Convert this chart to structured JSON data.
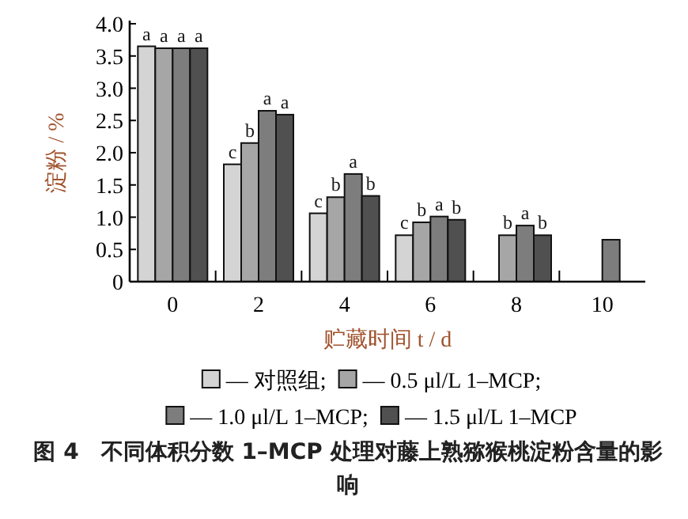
{
  "chart_data": {
    "type": "bar",
    "categories": [
      "0",
      "2",
      "4",
      "6",
      "8",
      "10"
    ],
    "xlabel": "贮藏时间 t / d",
    "ylabel": "淀粉 / %",
    "ylim": [
      0,
      4.0
    ],
    "yticks": [
      {
        "value": 0,
        "label": "0"
      },
      {
        "value": 0.5,
        "label": "0.5"
      },
      {
        "value": 1.0,
        "label": "1.0"
      },
      {
        "value": 1.5,
        "label": "1.5"
      },
      {
        "value": 2.0,
        "label": "2.0"
      },
      {
        "value": 2.5,
        "label": "2.5"
      },
      {
        "value": 3.0,
        "label": "3.0"
      },
      {
        "value": 3.5,
        "label": "3.5"
      },
      {
        "value": 4.0,
        "label": "4.0"
      }
    ],
    "series": [
      {
        "name": "— 对照组;",
        "color": "#d4d4d4",
        "values": [
          3.65,
          1.82,
          1.06,
          0.72,
          null,
          null
        ],
        "value_labels": [
          "a",
          "c",
          "c",
          "c",
          null,
          null
        ]
      },
      {
        "name": "— 0.5 μl/L 1–MCP;",
        "color": "#a6a6a6",
        "values": [
          3.62,
          2.15,
          1.31,
          0.92,
          0.72,
          null
        ],
        "value_labels": [
          "a",
          "b",
          "b",
          "b",
          "b",
          null
        ]
      },
      {
        "name": "— 1.0 μl/L 1–MCP;",
        "color": "#7d7d7d",
        "values": [
          3.62,
          2.65,
          1.67,
          1.01,
          0.87,
          0.65
        ],
        "value_labels": [
          "a",
          "a",
          "a",
          "a",
          "a",
          null
        ]
      },
      {
        "name": "— 1.5 μl/L 1–MCP",
        "color": "#505050",
        "values": [
          3.62,
          2.59,
          1.33,
          0.96,
          0.72,
          null
        ],
        "value_labels": [
          "a",
          "a",
          "b",
          "b",
          "b",
          null
        ]
      }
    ],
    "legend": "bottom",
    "grid": false,
    "annotations": [
      "图 4　不同体积分数 1–MCP 处理对藤上熟猕猴桃淀粉含量的影响"
    ]
  }
}
